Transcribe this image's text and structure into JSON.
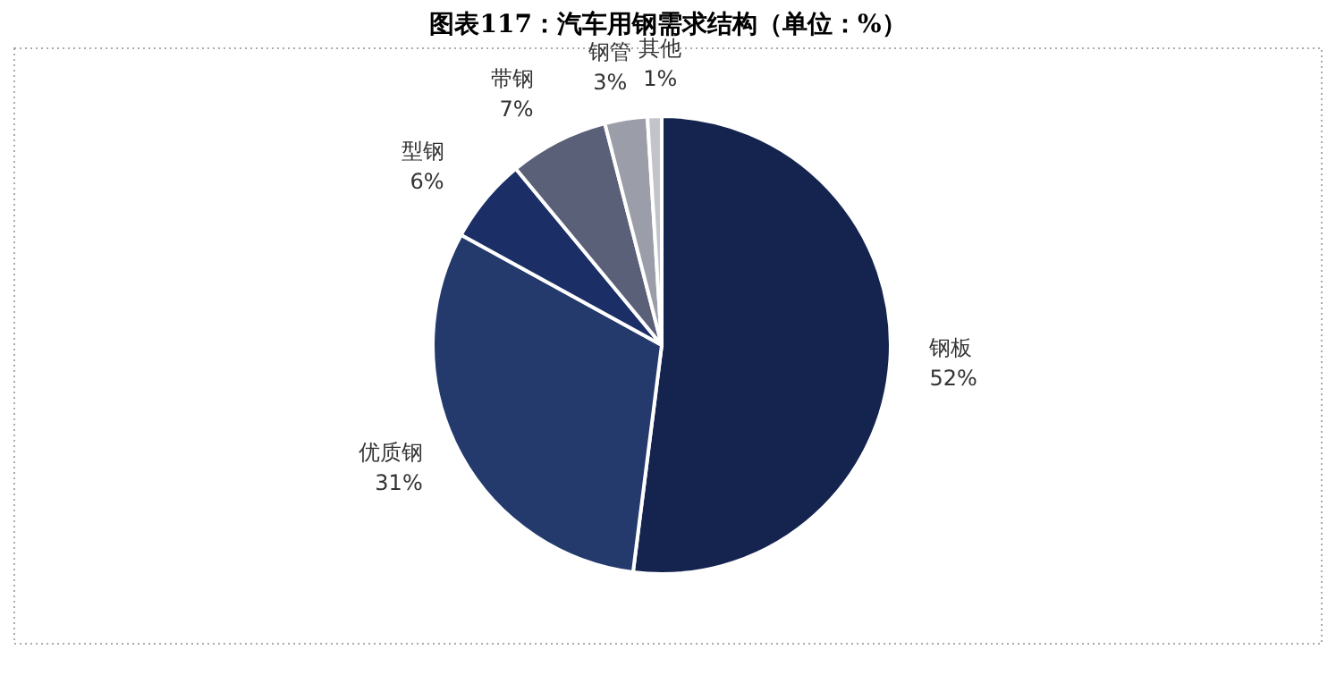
{
  "chart_data": {
    "type": "pie",
    "title": "图表117：汽车用钢需求结构（单位：%）",
    "categories": [
      "钢板",
      "优质钢",
      "型钢",
      "带钢",
      "钢管",
      "其他"
    ],
    "values": [
      52,
      31,
      6,
      7,
      3,
      1
    ],
    "value_labels": [
      "52%",
      "31%",
      "6%",
      "7%",
      "3%",
      "1%"
    ],
    "colors": [
      "#14244f",
      "#243a6d",
      "#1b2f66",
      "#5b6079",
      "#9b9da8",
      "#c3c4cb"
    ]
  }
}
